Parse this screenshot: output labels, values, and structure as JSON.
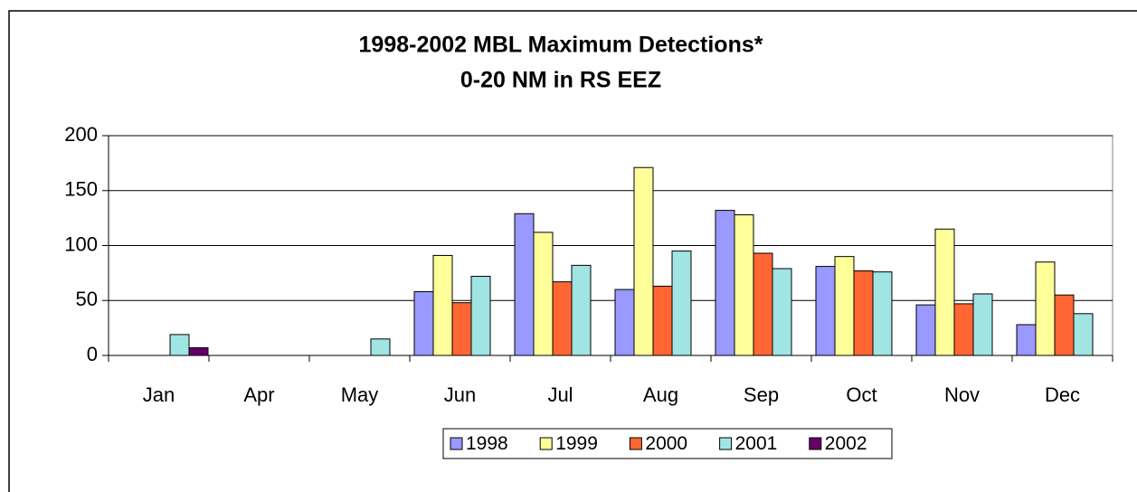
{
  "chart_data": {
    "type": "bar",
    "title": "1998-2002 MBL Maximum Detections*",
    "subtitle": "0-20 NM in RS EEZ",
    "categories": [
      "Jan",
      "Apr",
      "May",
      "Jun",
      "Jul",
      "Aug",
      "Sep",
      "Oct",
      "Nov",
      "Dec"
    ],
    "series": [
      {
        "name": "1998",
        "color": "#9999ff",
        "values": [
          0,
          0,
          0,
          58,
          129,
          60,
          132,
          81,
          46,
          28
        ]
      },
      {
        "name": "1999",
        "color": "#ffff99",
        "values": [
          0,
          0,
          0,
          91,
          112,
          171,
          128,
          90,
          115,
          85
        ]
      },
      {
        "name": "2000",
        "color": "#ff6633",
        "values": [
          0,
          0,
          0,
          48,
          67,
          63,
          93,
          77,
          47,
          55
        ]
      },
      {
        "name": "2001",
        "color": "#a0e4e4",
        "values": [
          19,
          0,
          15,
          72,
          82,
          95,
          79,
          76,
          56,
          38
        ]
      },
      {
        "name": "2002",
        "color": "#660066",
        "values": [
          7,
          0,
          0,
          0,
          0,
          0,
          0,
          0,
          0,
          0
        ]
      }
    ],
    "ylim": [
      0,
      200
    ],
    "yticks": [
      0,
      50,
      100,
      150,
      200
    ],
    "grid": true,
    "legend": "bottom"
  }
}
